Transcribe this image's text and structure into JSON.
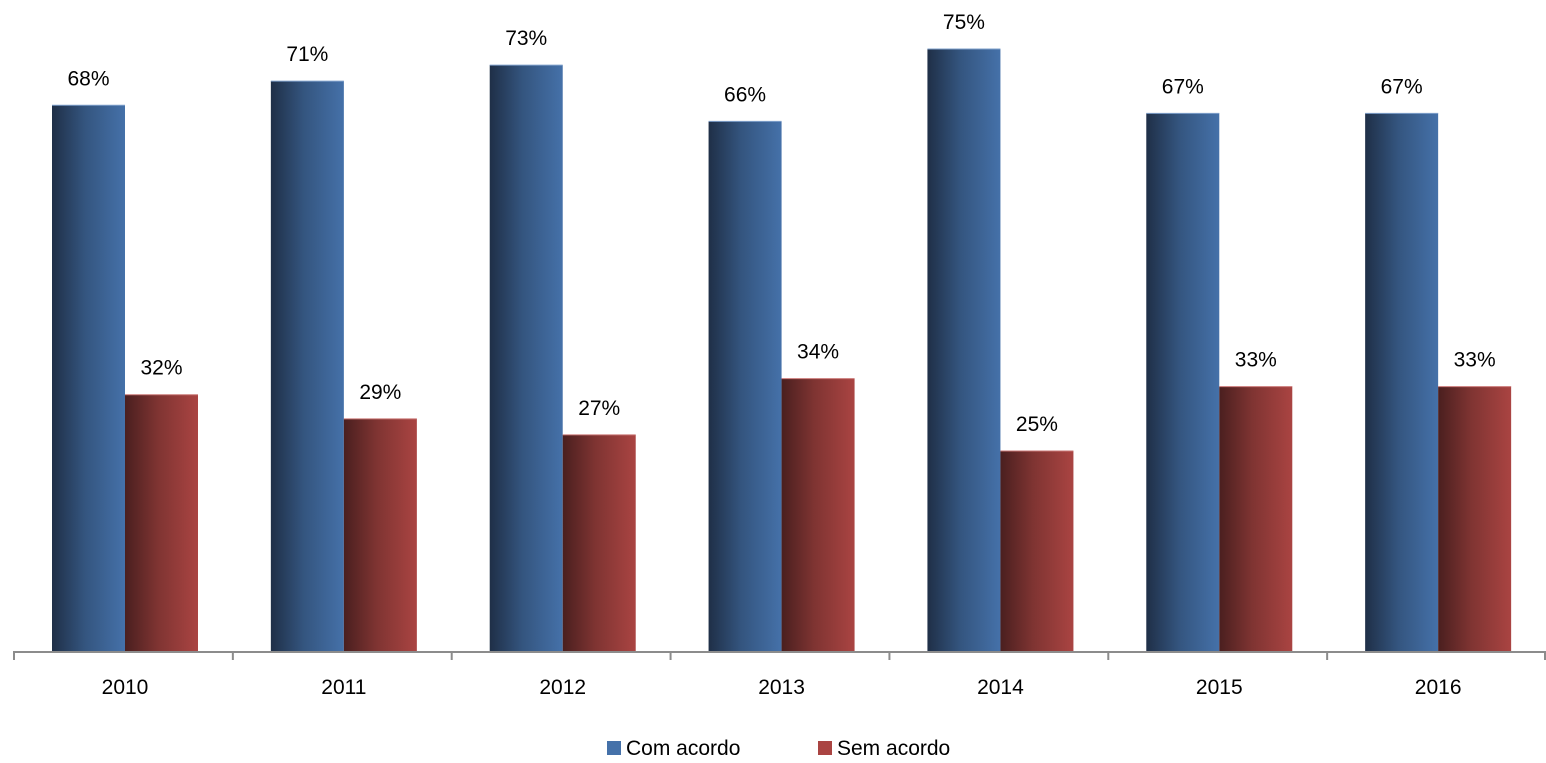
{
  "chart_data": {
    "type": "bar",
    "title": "",
    "xlabel": "",
    "ylabel": "",
    "categories": [
      "2010",
      "2011",
      "2012",
      "2013",
      "2014",
      "2015",
      "2016"
    ],
    "series": [
      {
        "name": "Com acordo",
        "color": "#4571A9",
        "values": [
          68,
          71,
          73,
          66,
          75,
          67,
          67
        ],
        "labels": [
          "68%",
          "71%",
          "73%",
          "66%",
          "75%",
          "67%",
          "67%"
        ]
      },
      {
        "name": "Sem acordo",
        "color": "#AA4442",
        "values": [
          32,
          29,
          27,
          34,
          25,
          33,
          33
        ],
        "labels": [
          "32%",
          "29%",
          "27%",
          "34%",
          "25%",
          "33%",
          "33%"
        ]
      }
    ],
    "ylim": [
      0,
      100
    ],
    "grid": false,
    "legend_position": "bottom"
  }
}
